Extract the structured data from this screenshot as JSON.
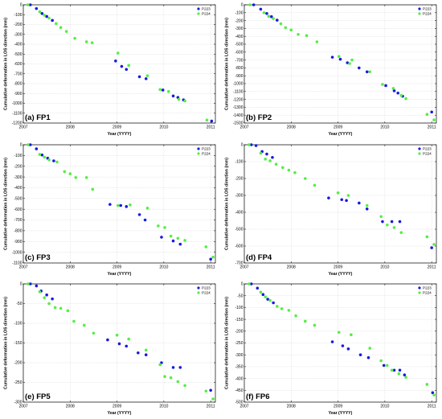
{
  "colors": {
    "P223": "#1a1adf",
    "P224": "#55ee44"
  },
  "chart_data": [
    {
      "type": "scatter",
      "panel_label": "(a)  FP1",
      "xlabel": "Year (YYYY)",
      "ylabel": "Cumulative deformation in LOS direction (mm)",
      "xlim": [
        2007,
        2011.1
      ],
      "ylim": [
        -1200,
        0
      ],
      "yticks": [
        0,
        -100,
        -200,
        -300,
        -400,
        -500,
        -600,
        -700,
        -800,
        -900,
        -1000,
        -1100,
        -1200
      ],
      "xticks": [
        2007,
        2008,
        2009,
        2010,
        2011
      ],
      "legend": "top-right",
      "grid": true,
      "series": [
        {
          "name": "P223",
          "points": [
            [
              2007.15,
              0
            ],
            [
              2007.28,
              -38
            ],
            [
              2007.4,
              -88
            ],
            [
              2007.5,
              -118
            ],
            [
              2007.62,
              -158
            ],
            [
              2008.97,
              -570
            ],
            [
              2009.1,
              -625
            ],
            [
              2009.2,
              -655
            ],
            [
              2009.48,
              -730
            ],
            [
              2009.62,
              -750
            ],
            [
              2009.98,
              -865
            ],
            [
              2010.2,
              -925
            ],
            [
              2010.3,
              -940
            ],
            [
              2010.42,
              -965
            ],
            [
              2011.02,
              -1180
            ]
          ]
        },
        {
          "name": "P224",
          "points": [
            [
              2007.1,
              0
            ],
            [
              2007.35,
              -70
            ],
            [
              2007.45,
              -105
            ],
            [
              2007.55,
              -135
            ],
            [
              2007.7,
              -190
            ],
            [
              2007.8,
              -230
            ],
            [
              2007.92,
              -270
            ],
            [
              2008.1,
              -340
            ],
            [
              2008.35,
              -375
            ],
            [
              2008.47,
              -385
            ],
            [
              2009.02,
              -490
            ],
            [
              2009.25,
              -615
            ],
            [
              2009.65,
              -720
            ],
            [
              2009.92,
              -860
            ],
            [
              2010.1,
              -880
            ],
            [
              2010.32,
              -960
            ],
            [
              2010.45,
              -975
            ],
            [
              2010.92,
              -1170
            ]
          ]
        }
      ]
    },
    {
      "type": "scatter",
      "panel_label": "(b)  FP2",
      "xlabel": "Year (YYYY)",
      "ylabel": "Cumulative deformation in LOS direction (mm)",
      "xlim": [
        2007,
        2011.1
      ],
      "ylim": [
        -1500,
        0
      ],
      "yticks": [
        0,
        -100,
        -200,
        -300,
        -400,
        -500,
        -600,
        -700,
        -800,
        -900,
        -1000,
        -1100,
        -1200,
        -1300,
        -1400,
        -1500
      ],
      "xticks": [
        2007,
        2008,
        2009,
        2010,
        2011
      ],
      "legend": "top-right",
      "grid": true,
      "series": [
        {
          "name": "P223",
          "points": [
            [
              2007.2,
              0
            ],
            [
              2007.35,
              -55
            ],
            [
              2007.48,
              -110
            ],
            [
              2007.58,
              -150
            ],
            [
              2007.7,
              -195
            ],
            [
              2008.88,
              -665
            ],
            [
              2009.05,
              -690
            ],
            [
              2009.2,
              -735
            ],
            [
              2009.45,
              -800
            ],
            [
              2009.62,
              -850
            ],
            [
              2010.02,
              -1025
            ],
            [
              2010.2,
              -1090
            ],
            [
              2010.28,
              -1120
            ],
            [
              2010.38,
              -1160
            ],
            [
              2011.0,
              -1360
            ]
          ]
        },
        {
          "name": "P224",
          "points": [
            [
              2007.12,
              0
            ],
            [
              2007.42,
              -100
            ],
            [
              2007.52,
              -145
            ],
            [
              2007.62,
              -175
            ],
            [
              2007.78,
              -240
            ],
            [
              2007.88,
              -290
            ],
            [
              2008.0,
              -320
            ],
            [
              2008.15,
              -375
            ],
            [
              2008.33,
              -390
            ],
            [
              2008.55,
              -470
            ],
            [
              2009.02,
              -655
            ],
            [
              2009.25,
              -745
            ],
            [
              2009.3,
              -700
            ],
            [
              2009.68,
              -850
            ],
            [
              2009.95,
              -1010
            ],
            [
              2010.18,
              -1060
            ],
            [
              2010.35,
              -1150
            ],
            [
              2010.45,
              -1190
            ],
            [
              2010.9,
              -1390
            ],
            [
              2011.05,
              -1460
            ]
          ]
        }
      ]
    },
    {
      "type": "scatter",
      "panel_label": "(c)  FP3",
      "xlabel": "Year (YYYY)",
      "ylabel": "Cumulative deformation in LOS direction (mm)",
      "xlim": [
        2007,
        2011.1
      ],
      "ylim": [
        -1100,
        0
      ],
      "yticks": [
        0,
        -100,
        -200,
        -300,
        -400,
        -500,
        -600,
        -700,
        -800,
        -900,
        -1000,
        -1100
      ],
      "xticks": [
        2007,
        2008,
        2009,
        2010,
        2011
      ],
      "legend": "top-right",
      "grid": true,
      "series": [
        {
          "name": "P223",
          "points": [
            [
              2007.15,
              0
            ],
            [
              2007.28,
              -38
            ],
            [
              2007.4,
              -95
            ],
            [
              2007.52,
              -125
            ],
            [
              2007.65,
              -150
            ],
            [
              2008.85,
              -555
            ],
            [
              2009.08,
              -565
            ],
            [
              2009.2,
              -575
            ],
            [
              2009.48,
              -650
            ],
            [
              2009.6,
              -700
            ],
            [
              2009.95,
              -860
            ],
            [
              2010.2,
              -895
            ],
            [
              2010.35,
              -925
            ],
            [
              2011.0,
              -1065
            ]
          ]
        },
        {
          "name": "P224",
          "points": [
            [
              2007.1,
              0
            ],
            [
              2007.35,
              -90
            ],
            [
              2007.45,
              -115
            ],
            [
              2007.55,
              -140
            ],
            [
              2007.72,
              -160
            ],
            [
              2007.88,
              -250
            ],
            [
              2008.0,
              -270
            ],
            [
              2008.12,
              -305
            ],
            [
              2008.35,
              -305
            ],
            [
              2008.48,
              -415
            ],
            [
              2009.02,
              -565
            ],
            [
              2009.28,
              -560
            ],
            [
              2009.65,
              -590
            ],
            [
              2009.88,
              -755
            ],
            [
              2010.02,
              -770
            ],
            [
              2010.15,
              -850
            ],
            [
              2010.3,
              -870
            ],
            [
              2010.45,
              -890
            ],
            [
              2010.9,
              -950
            ],
            [
              2011.05,
              -1045
            ]
          ]
        }
      ]
    },
    {
      "type": "scatter",
      "panel_label": "(d)  FP4",
      "xlabel": "Year (YYYY)",
      "ylabel": "Cumulative deformation in LOS direction (mm)",
      "xlim": [
        2007,
        2011.1
      ],
      "ylim": [
        -700,
        0
      ],
      "yticks": [
        0,
        -100,
        -200,
        -300,
        -400,
        -500,
        -600,
        -700
      ],
      "xticks": [
        2007,
        2008,
        2009,
        2010,
        2011
      ],
      "legend": "top-right",
      "grid": true,
      "series": [
        {
          "name": "P223",
          "points": [
            [
              2007.15,
              0
            ],
            [
              2007.25,
              -5
            ],
            [
              2007.38,
              -40
            ],
            [
              2007.48,
              -55
            ],
            [
              2007.6,
              -75
            ],
            [
              2008.8,
              -315
            ],
            [
              2009.08,
              -325
            ],
            [
              2009.18,
              -330
            ],
            [
              2009.45,
              -345
            ],
            [
              2009.62,
              -380
            ],
            [
              2009.95,
              -455
            ],
            [
              2010.15,
              -455
            ],
            [
              2010.32,
              -455
            ],
            [
              2011.0,
              -610
            ]
          ]
        },
        {
          "name": "P224",
          "points": [
            [
              2007.1,
              0
            ],
            [
              2007.35,
              -50
            ],
            [
              2007.45,
              -85
            ],
            [
              2007.55,
              -95
            ],
            [
              2007.68,
              -115
            ],
            [
              2007.82,
              -135
            ],
            [
              2007.95,
              -150
            ],
            [
              2008.08,
              -165
            ],
            [
              2008.3,
              -200
            ],
            [
              2008.5,
              -240
            ],
            [
              2009.0,
              -285
            ],
            [
              2009.22,
              -300
            ],
            [
              2009.62,
              -360
            ],
            [
              2009.92,
              -425
            ],
            [
              2010.05,
              -475
            ],
            [
              2010.2,
              -490
            ],
            [
              2010.35,
              -520
            ],
            [
              2010.9,
              -545
            ],
            [
              2011.05,
              -590
            ]
          ]
        }
      ]
    },
    {
      "type": "scatter",
      "panel_label": "(e)  FP5",
      "xlabel": "Year (YYYY)",
      "ylabel": "Cumulative deformation in LOS direction (mm)",
      "xlim": [
        2007,
        2011.1
      ],
      "ylim": [
        -300,
        0
      ],
      "yticks": [
        0,
        -50,
        -100,
        -150,
        -200,
        -250,
        -300
      ],
      "xticks": [
        2007,
        2008,
        2009,
        2010,
        2011
      ],
      "legend": "top-right",
      "grid": true,
      "series": [
        {
          "name": "P223",
          "points": [
            [
              2007.15,
              0
            ],
            [
              2007.28,
              -5
            ],
            [
              2007.38,
              -18
            ],
            [
              2007.5,
              -28
            ],
            [
              2007.62,
              -38
            ],
            [
              2008.8,
              -142
            ],
            [
              2009.05,
              -152
            ],
            [
              2009.2,
              -158
            ],
            [
              2009.45,
              -175
            ],
            [
              2009.62,
              -180
            ],
            [
              2009.95,
              -200
            ],
            [
              2010.2,
              -212
            ],
            [
              2010.35,
              -212
            ],
            [
              2011.0,
              -270
            ]
          ]
        },
        {
          "name": "P224",
          "points": [
            [
              2007.1,
              0
            ],
            [
              2007.35,
              -20
            ],
            [
              2007.45,
              -35
            ],
            [
              2007.55,
              -50
            ],
            [
              2007.68,
              -60
            ],
            [
              2007.8,
              -62
            ],
            [
              2007.95,
              -68
            ],
            [
              2008.08,
              -95
            ],
            [
              2008.3,
              -105
            ],
            [
              2008.5,
              -125
            ],
            [
              2009.0,
              -130
            ],
            [
              2009.25,
              -140
            ],
            [
              2009.62,
              -168
            ],
            [
              2009.92,
              -205
            ],
            [
              2010.02,
              -235
            ],
            [
              2010.15,
              -238
            ],
            [
              2010.3,
              -248
            ],
            [
              2010.45,
              -258
            ],
            [
              2010.9,
              -272
            ],
            [
              2011.05,
              -292
            ]
          ]
        }
      ]
    },
    {
      "type": "scatter",
      "panel_label": "(f)  FP6",
      "xlabel": "Year (YYYY)",
      "ylabel": "Cumulative deformation in LOS direction (mm)",
      "xlim": [
        2007,
        2011.1
      ],
      "ylim": [
        -500,
        0
      ],
      "yticks": [
        0,
        -50,
        -100,
        -150,
        -200,
        -250,
        -300,
        -350,
        -400,
        -450,
        -500
      ],
      "xticks": [
        2007,
        2008,
        2009,
        2010,
        2011
      ],
      "legend": "top-right",
      "grid": true,
      "series": [
        {
          "name": "P223",
          "points": [
            [
              2007.15,
              0
            ],
            [
              2007.28,
              -18
            ],
            [
              2007.4,
              -45
            ],
            [
              2007.5,
              -65
            ],
            [
              2007.62,
              -80
            ],
            [
              2008.88,
              -245
            ],
            [
              2009.1,
              -262
            ],
            [
              2009.22,
              -275
            ],
            [
              2009.48,
              -300
            ],
            [
              2009.65,
              -312
            ],
            [
              2009.98,
              -345
            ],
            [
              2010.2,
              -365
            ],
            [
              2010.32,
              -365
            ],
            [
              2010.42,
              -385
            ],
            [
              2011.02,
              -460
            ]
          ]
        },
        {
          "name": "P224",
          "points": [
            [
              2007.1,
              0
            ],
            [
              2007.35,
              -35
            ],
            [
              2007.45,
              -55
            ],
            [
              2007.55,
              -70
            ],
            [
              2007.7,
              -95
            ],
            [
              2007.8,
              -105
            ],
            [
              2007.95,
              -112
            ],
            [
              2008.1,
              -135
            ],
            [
              2008.3,
              -158
            ],
            [
              2008.5,
              -175
            ],
            [
              2009.02,
              -205
            ],
            [
              2009.28,
              -215
            ],
            [
              2009.68,
              -272
            ],
            [
              2009.92,
              -325
            ],
            [
              2010.05,
              -345
            ],
            [
              2010.15,
              -365
            ],
            [
              2010.3,
              -380
            ],
            [
              2010.45,
              -395
            ],
            [
              2010.9,
              -425
            ],
            [
              2011.05,
              -470
            ]
          ]
        }
      ]
    }
  ]
}
